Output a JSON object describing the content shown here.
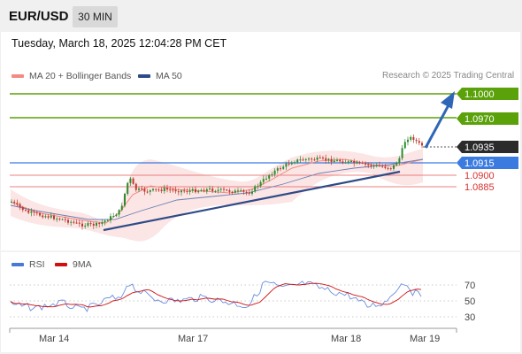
{
  "header": {
    "symbol": "EUR/USD",
    "timeframe": "30 MIN"
  },
  "timestamp": "Tuesday, March 18, 2025 12:04:28 PM CET",
  "legend": {
    "ma20_bollinger": {
      "label": "MA 20 + Bollinger Bands",
      "color": "#f28b82"
    },
    "ma50": {
      "label": "MA 50",
      "color": "#2e4a87"
    }
  },
  "research_credit": "Research © 2025 Trading Central",
  "price_levels": [
    {
      "value": "1.1000",
      "kind": "target",
      "color": "#5aa10a"
    },
    {
      "value": "1.0970",
      "kind": "target",
      "color": "#5aa10a"
    },
    {
      "value": "1.0935",
      "kind": "current",
      "color": "#2b2b2b"
    },
    {
      "value": "1.0915",
      "kind": "pivot",
      "color": "#3b7be0"
    },
    {
      "value": "1.0900",
      "kind": "support",
      "color": "#d93030"
    },
    {
      "value": "1.0885",
      "kind": "support",
      "color": "#d93030"
    }
  ],
  "rsi_panel": {
    "legend": [
      {
        "label": "RSI",
        "color": "#4a78d8"
      },
      {
        "label": "9MA",
        "color": "#d01010"
      }
    ],
    "levels": [
      "70",
      "50",
      "30"
    ]
  },
  "x_axis": [
    "Mar 14",
    "Mar 17",
    "Mar 18",
    "Mar 19"
  ]
}
